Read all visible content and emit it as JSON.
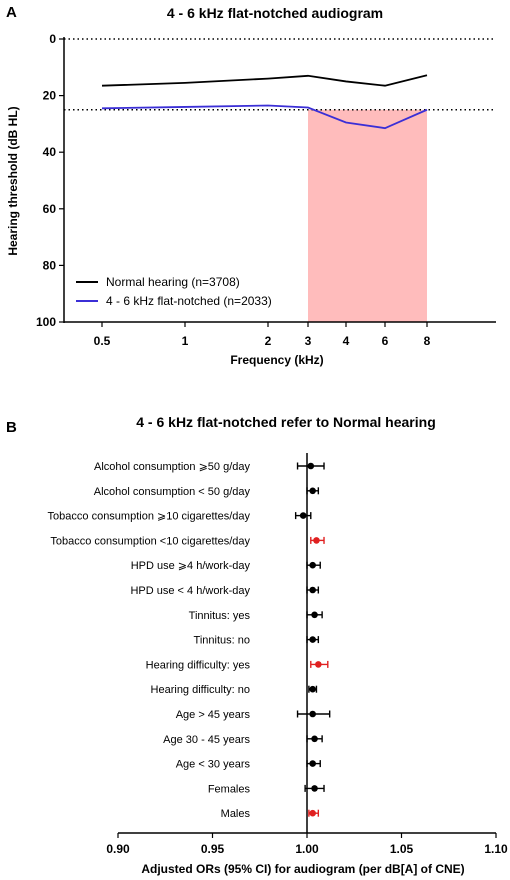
{
  "chart_data": [
    {
      "panel_label": "A",
      "type": "line",
      "title": "4 - 6 kHz flat-notched audiogram",
      "xlabel": "Frequency (kHz)",
      "ylabel": "Hearing threshold (dB HL)",
      "x_scale": "log",
      "x": [
        0.5,
        1,
        2,
        3,
        4,
        6,
        8
      ],
      "x_ticks": [
        "0.5",
        "1",
        "2",
        "3",
        "4",
        "6",
        "8"
      ],
      "ylim": [
        0,
        100
      ],
      "y_inverted": true,
      "y_ticks": [
        "0",
        "20",
        "40",
        "60",
        "80",
        "100"
      ],
      "reference_lines": [
        0,
        25
      ],
      "shaded_x_range": [
        3,
        8
      ],
      "shade_color": "#ffbcbc",
      "legend_position": "lower-left",
      "series": [
        {
          "name": "Normal hearing (n=3708)",
          "color": "#000000",
          "values": [
            16.5,
            15.5,
            14,
            13,
            15,
            16.5,
            12.8
          ]
        },
        {
          "name": "4 - 6 kHz flat-notched (n=2033)",
          "color": "#3b2fd6",
          "values": [
            24.5,
            24,
            23.5,
            24.2,
            29.5,
            31.5,
            25
          ]
        }
      ]
    },
    {
      "panel_label": "B",
      "type": "forest",
      "title": "4 - 6 kHz flat-notched refer to Normal hearing",
      "xlabel": "Adjusted ORs (95% CI) for audiogram (per dB[A] of CNE)",
      "xlim": [
        0.9,
        1.1
      ],
      "x_ticks": [
        "0.90",
        "0.95",
        "1.00",
        "1.05",
        "1.10"
      ],
      "reference_line": 1.0,
      "highlight_color": "#e02020",
      "rows": [
        {
          "label": "Alcohol consumption ⩾50 g/day",
          "or": 1.002,
          "lo": 0.995,
          "hi": 1.009,
          "highlight": false
        },
        {
          "label": "Alcohol consumption < 50 g/day",
          "or": 1.003,
          "lo": 1.0,
          "hi": 1.006,
          "highlight": false
        },
        {
          "label": "Tobacco consumption ⩾10 cigarettes/day",
          "or": 0.998,
          "lo": 0.994,
          "hi": 1.002,
          "highlight": false
        },
        {
          "label": "Tobacco consumption <10 cigarettes/day",
          "or": 1.005,
          "lo": 1.002,
          "hi": 1.009,
          "highlight": true
        },
        {
          "label": "HPD use ⩾4 h/work-day",
          "or": 1.003,
          "lo": 1.0,
          "hi": 1.007,
          "highlight": false
        },
        {
          "label": "HPD use < 4 h/work-day",
          "or": 1.003,
          "lo": 1.0,
          "hi": 1.006,
          "highlight": false
        },
        {
          "label": "Tinnitus: yes",
          "or": 1.004,
          "lo": 1.0,
          "hi": 1.008,
          "highlight": false
        },
        {
          "label": "Tinnitus: no",
          "or": 1.003,
          "lo": 1.0,
          "hi": 1.006,
          "highlight": false
        },
        {
          "label": "Hearing difficulty: yes",
          "or": 1.006,
          "lo": 1.002,
          "hi": 1.011,
          "highlight": true
        },
        {
          "label": "Hearing difficulty: no",
          "or": 1.003,
          "lo": 1.001,
          "hi": 1.005,
          "highlight": false
        },
        {
          "label": "Age > 45 years",
          "or": 1.003,
          "lo": 0.995,
          "hi": 1.012,
          "highlight": false
        },
        {
          "label": "Age 30 - 45 years",
          "or": 1.004,
          "lo": 1.0,
          "hi": 1.008,
          "highlight": false
        },
        {
          "label": "Age < 30 years",
          "or": 1.003,
          "lo": 1.0,
          "hi": 1.007,
          "highlight": false
        },
        {
          "label": "Females",
          "or": 1.004,
          "lo": 0.999,
          "hi": 1.009,
          "highlight": false
        },
        {
          "label": "Males",
          "or": 1.003,
          "lo": 1.001,
          "hi": 1.006,
          "highlight": true
        }
      ]
    }
  ]
}
